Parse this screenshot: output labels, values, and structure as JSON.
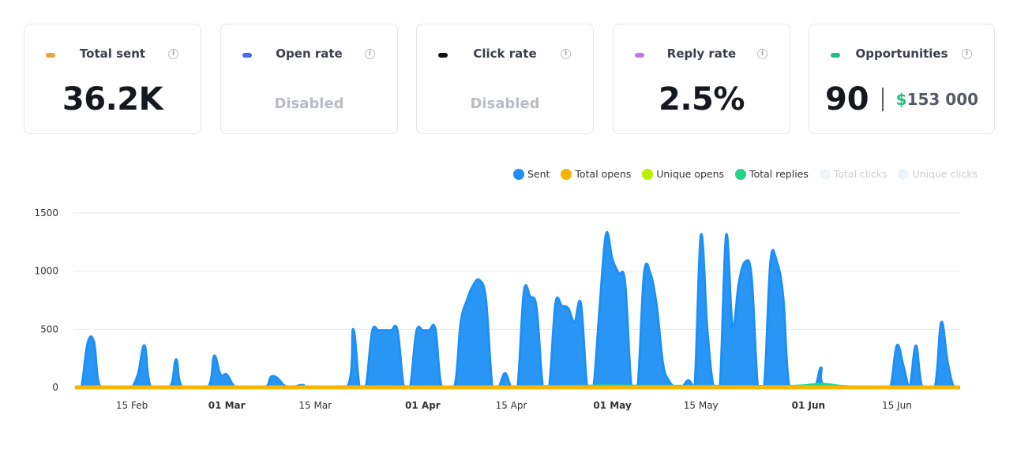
{
  "cards": [
    {
      "title": "Total sent",
      "value": "36.2K",
      "color": "#f5a23a"
    },
    {
      "title": "Open rate",
      "value": "Disabled",
      "color": "#3b6ff0"
    },
    {
      "title": "Click rate",
      "value": "Disabled",
      "color": "#111111"
    },
    {
      "title": "Reply rate",
      "value": "2.5%",
      "color": "#b77be8"
    },
    {
      "title": "Opportunities",
      "value": "90",
      "money_symbol": "$",
      "money": "153 000",
      "color": "#22c07a"
    }
  ],
  "info_glyph": "i",
  "chart_data": {
    "type": "area",
    "legend": [
      {
        "name": "Sent",
        "color": "#1e90f5",
        "active": true
      },
      {
        "name": "Total opens",
        "color": "#f7b500",
        "active": true
      },
      {
        "name": "Unique opens",
        "color": "#b6f000",
        "active": true
      },
      {
        "name": "Total replies",
        "color": "#22d48a",
        "active": true
      },
      {
        "name": "Total clicks",
        "color": "#f0f4f8",
        "active": false
      },
      {
        "name": "Unique clicks",
        "color": "#eef3f7",
        "active": false
      }
    ],
    "ylim": [
      0,
      1500
    ],
    "yticks": [
      0,
      500,
      1000,
      1500
    ],
    "xlim": [
      "2024-02-06",
      "2024-06-25"
    ],
    "xticks": [
      {
        "date": "2024-02-15",
        "label": "15 Feb",
        "bold": false
      },
      {
        "date": "2024-03-01",
        "label": "01 Mar",
        "bold": true
      },
      {
        "date": "2024-03-15",
        "label": "15 Mar",
        "bold": false
      },
      {
        "date": "2024-04-01",
        "label": "01 Apr",
        "bold": true
      },
      {
        "date": "2024-04-15",
        "label": "15 Apr",
        "bold": false
      },
      {
        "date": "2024-05-01",
        "label": "01 May",
        "bold": true
      },
      {
        "date": "2024-05-15",
        "label": "15 May",
        "bold": false
      },
      {
        "date": "2024-06-01",
        "label": "01 Jun",
        "bold": true
      },
      {
        "date": "2024-06-15",
        "label": "15 Jun",
        "bold": false
      }
    ],
    "series": [
      {
        "name": "Sent",
        "points": [
          [
            "2024-02-06",
            0
          ],
          [
            "2024-02-07",
            0
          ],
          [
            "2024-02-08",
            380
          ],
          [
            "2024-02-09",
            390
          ],
          [
            "2024-02-10",
            0
          ],
          [
            "2024-02-13",
            0
          ],
          [
            "2024-02-14",
            0
          ],
          [
            "2024-02-15",
            0
          ],
          [
            "2024-02-16",
            120
          ],
          [
            "2024-02-17",
            360
          ],
          [
            "2024-02-18",
            0
          ],
          [
            "2024-02-21",
            0
          ],
          [
            "2024-02-22",
            240
          ],
          [
            "2024-02-23",
            0
          ],
          [
            "2024-02-27",
            0
          ],
          [
            "2024-02-28",
            270
          ],
          [
            "2024-02-29",
            110
          ],
          [
            "2024-03-01",
            110
          ],
          [
            "2024-03-02",
            20
          ],
          [
            "2024-03-03",
            0
          ],
          [
            "2024-03-07",
            0
          ],
          [
            "2024-03-08",
            90
          ],
          [
            "2024-03-09",
            80
          ],
          [
            "2024-03-10",
            20
          ],
          [
            "2024-03-11",
            0
          ],
          [
            "2024-03-13",
            20
          ],
          [
            "2024-03-14",
            0
          ],
          [
            "2024-03-20",
            0
          ],
          [
            "2024-03-21",
            500
          ],
          [
            "2024-03-22",
            0
          ],
          [
            "2024-03-23",
            0
          ],
          [
            "2024-03-24",
            480
          ],
          [
            "2024-03-25",
            490
          ],
          [
            "2024-03-26",
            490
          ],
          [
            "2024-03-27",
            490
          ],
          [
            "2024-03-28",
            490
          ],
          [
            "2024-03-29",
            0
          ],
          [
            "2024-03-30",
            0
          ],
          [
            "2024-03-31",
            480
          ],
          [
            "2024-04-01",
            490
          ],
          [
            "2024-04-02",
            490
          ],
          [
            "2024-04-03",
            500
          ],
          [
            "2024-04-04",
            0
          ],
          [
            "2024-04-06",
            0
          ],
          [
            "2024-04-07",
            550
          ],
          [
            "2024-04-08",
            750
          ],
          [
            "2024-04-09",
            880
          ],
          [
            "2024-04-10",
            920
          ],
          [
            "2024-04-11",
            750
          ],
          [
            "2024-04-12",
            0
          ],
          [
            "2024-04-13",
            0
          ],
          [
            "2024-04-14",
            120
          ],
          [
            "2024-04-15",
            0
          ],
          [
            "2024-04-16",
            0
          ],
          [
            "2024-04-17",
            820
          ],
          [
            "2024-04-18",
            780
          ],
          [
            "2024-04-19",
            680
          ],
          [
            "2024-04-20",
            0
          ],
          [
            "2024-04-21",
            0
          ],
          [
            "2024-04-22",
            720
          ],
          [
            "2024-04-23",
            700
          ],
          [
            "2024-04-24",
            680
          ],
          [
            "2024-04-25",
            560
          ],
          [
            "2024-04-26",
            720
          ],
          [
            "2024-04-27",
            0
          ],
          [
            "2024-04-28",
            0
          ],
          [
            "2024-04-29",
            700
          ],
          [
            "2024-04-30",
            1320
          ],
          [
            "2024-05-01",
            1100
          ],
          [
            "2024-05-02",
            980
          ],
          [
            "2024-05-03",
            900
          ],
          [
            "2024-05-04",
            0
          ],
          [
            "2024-05-05",
            0
          ],
          [
            "2024-05-06",
            970
          ],
          [
            "2024-05-07",
            980
          ],
          [
            "2024-05-08",
            700
          ],
          [
            "2024-05-09",
            200
          ],
          [
            "2024-05-10",
            50
          ],
          [
            "2024-05-11",
            0
          ],
          [
            "2024-05-12",
            0
          ],
          [
            "2024-05-13",
            60
          ],
          [
            "2024-05-14",
            0
          ],
          [
            "2024-05-15",
            1310
          ],
          [
            "2024-05-16",
            500
          ],
          [
            "2024-05-17",
            0
          ],
          [
            "2024-05-18",
            0
          ],
          [
            "2024-05-19",
            1310
          ],
          [
            "2024-05-20",
            520
          ],
          [
            "2024-05-21",
            900
          ],
          [
            "2024-05-22",
            1080
          ],
          [
            "2024-05-23",
            950
          ],
          [
            "2024-05-24",
            0
          ],
          [
            "2024-05-25",
            0
          ],
          [
            "2024-05-26",
            1080
          ],
          [
            "2024-05-27",
            1080
          ],
          [
            "2024-05-28",
            780
          ],
          [
            "2024-05-29",
            0
          ],
          [
            "2024-05-31",
            0
          ],
          [
            "2024-06-02",
            0
          ],
          [
            "2024-06-03",
            170
          ],
          [
            "2024-06-04",
            0
          ],
          [
            "2024-06-13",
            0
          ],
          [
            "2024-06-14",
            0
          ],
          [
            "2024-06-15",
            360
          ],
          [
            "2024-06-16",
            190
          ],
          [
            "2024-06-17",
            0
          ],
          [
            "2024-06-18",
            360
          ],
          [
            "2024-06-19",
            0
          ],
          [
            "2024-06-21",
            0
          ],
          [
            "2024-06-22",
            560
          ],
          [
            "2024-06-23",
            220
          ],
          [
            "2024-06-24",
            0
          ],
          [
            "2024-06-25",
            0
          ]
        ]
      },
      {
        "name": "Total replies",
        "points": [
          [
            "2024-02-06",
            0
          ],
          [
            "2024-03-27",
            8
          ],
          [
            "2024-04-10",
            6
          ],
          [
            "2024-04-24",
            10
          ],
          [
            "2024-04-30",
            14
          ],
          [
            "2024-05-08",
            12
          ],
          [
            "2024-05-20",
            10
          ],
          [
            "2024-05-30",
            12
          ],
          [
            "2024-06-03",
            30
          ],
          [
            "2024-06-06",
            12
          ],
          [
            "2024-06-10",
            4
          ],
          [
            "2024-06-25",
            0
          ]
        ]
      },
      {
        "name": "Total opens",
        "points": [
          [
            "2024-02-06",
            0
          ],
          [
            "2024-06-25",
            0
          ]
        ]
      }
    ]
  }
}
